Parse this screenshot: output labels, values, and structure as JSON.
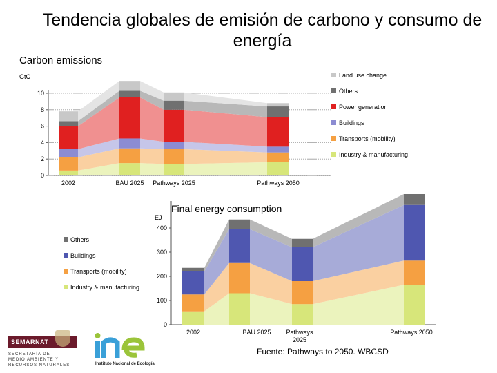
{
  "page": {
    "title": "Tendencia globales de emisión  de carbono y consumo de energía",
    "source": "Fuente:  Pathways to 2050. WBCSD",
    "logo_left_brand": "SEMARNAT",
    "logo_left_text": [
      "SECRETARÍA DE",
      "MEDIO AMBIENTE Y",
      "RECURSOS NATURALES"
    ],
    "logo_right_brand": "ine",
    "logo_right_caption": "Instituto Nacional de Ecología"
  },
  "chart_data": [
    {
      "type": "bar",
      "subtype": "stacked bar with area",
      "title": "Carbon emissions",
      "ylabel": "GtC",
      "ylim": [
        0,
        10
      ],
      "yticks": [
        0,
        2,
        4,
        6,
        8,
        10
      ],
      "grid": true,
      "legend_position": "right",
      "x_tick_labels": [
        "2002",
        "BAU 2025",
        "Pathways 2025",
        "Pathways 2050"
      ],
      "categories": [
        "2002",
        "BAU 2025",
        "Pathways 2025",
        "Pathways 2050"
      ],
      "series": [
        {
          "name": "Industry & manufacturing",
          "color": "#d7e67a",
          "values": [
            0.6,
            1.5,
            1.4,
            1.6
          ]
        },
        {
          "name": "Transports (mobility)",
          "color": "#f5a042",
          "values": [
            1.6,
            1.8,
            1.8,
            1.2
          ]
        },
        {
          "name": "Buildings",
          "color": "#8c8cd2",
          "values": [
            1.0,
            1.2,
            0.9,
            0.7
          ]
        },
        {
          "name": "Power generation",
          "color": "#e02020",
          "values": [
            2.8,
            5.0,
            3.9,
            3.6
          ]
        },
        {
          "name": "Others",
          "color": "#707070",
          "values": [
            0.6,
            0.8,
            1.1,
            1.3
          ]
        },
        {
          "name": "Land use change",
          "color": "#c8c8c8",
          "values": [
            1.2,
            1.2,
            1.0,
            0.4
          ]
        }
      ]
    },
    {
      "type": "bar",
      "subtype": "stacked bar with area",
      "title": "Final energy consumption",
      "ylabel": "EJ",
      "ylim": [
        0,
        500
      ],
      "yticks": [
        0,
        100,
        200,
        300,
        400
      ],
      "grid": false,
      "legend_position": "left",
      "x_tick_labels": [
        "2002",
        "BAU 2025",
        "Pathways 2025",
        "Pathways 2050"
      ],
      "categories": [
        "2002",
        "BAU 2025",
        "Pathways 2025",
        "Pathways 2050"
      ],
      "series": [
        {
          "name": "Industry & manufacturing",
          "color": "#d7e67a",
          "values": [
            55,
            130,
            85,
            165
          ]
        },
        {
          "name": "Transports (mobility)",
          "color": "#f5a042",
          "values": [
            70,
            125,
            95,
            100
          ]
        },
        {
          "name": "Buildings",
          "color": "#4f57b0",
          "values": [
            95,
            140,
            140,
            230
          ]
        },
        {
          "name": "Others",
          "color": "#707070",
          "values": [
            15,
            40,
            35,
            45
          ]
        }
      ]
    }
  ]
}
